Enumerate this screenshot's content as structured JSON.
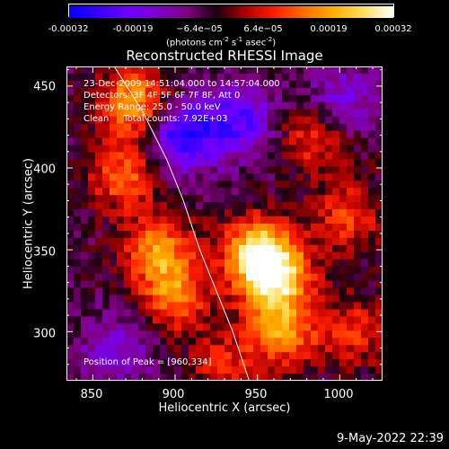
{
  "colorbar": {
    "ticks": [
      "-0.00032",
      "-0.00019",
      "−6.4e−05",
      "6.4e−05",
      "0.00019",
      "0.00032"
    ],
    "units_main": "(photons cm",
    "units_exp1": "-2",
    "units_mid1": " s",
    "units_exp2": "-1",
    "units_mid2": " asec",
    "units_exp3": "-2",
    "units_end": ")",
    "colormap": [
      "#0000ff",
      "#3a00ff",
      "#6e00ff",
      "#7f00cc",
      "#800080",
      "#1a0010",
      "#b00000",
      "#ff2000",
      "#ff7000",
      "#ffb000",
      "#ffe060",
      "#ffffff"
    ]
  },
  "chart_data": {
    "type": "heatmap",
    "title": "Reconstructed RHESSI Image",
    "xlabel": "Heliocentric X (arcsec)",
    "ylabel": "Heliocentric Y (arcsec)",
    "xlim": [
      834,
      1026
    ],
    "ylim": [
      270,
      462
    ],
    "xticks": [
      850,
      900,
      950,
      1000
    ],
    "yticks": [
      300,
      350,
      400,
      450
    ],
    "value_range": [
      -0.00032,
      0.00032
    ],
    "limb_curve": [
      [
        863,
        462
      ],
      [
        880,
        435
      ],
      [
        895,
        405
      ],
      [
        905,
        380
      ],
      [
        915,
        350
      ],
      [
        925,
        325
      ],
      [
        935,
        300
      ],
      [
        945,
        270
      ]
    ],
    "peak": [
      960,
      334
    ],
    "bright_sources": [
      {
        "x": 875,
        "y": 440,
        "value": 0.00024
      },
      {
        "x": 868,
        "y": 395,
        "value": 0.00018
      },
      {
        "x": 890,
        "y": 350,
        "value": 0.00021
      },
      {
        "x": 900,
        "y": 322,
        "value": 0.0002
      },
      {
        "x": 960,
        "y": 334,
        "value": 0.00032
      },
      {
        "x": 950,
        "y": 350,
        "value": 0.00025
      },
      {
        "x": 965,
        "y": 300,
        "value": 0.00022
      },
      {
        "x": 985,
        "y": 420,
        "value": 0.00016
      },
      {
        "x": 1005,
        "y": 370,
        "value": 0.00015
      },
      {
        "x": 930,
        "y": 280,
        "value": 0.00012
      },
      {
        "x": 1010,
        "y": 300,
        "value": 0.00013
      }
    ],
    "dark_regions": [
      {
        "x": 905,
        "y": 420,
        "value": -0.00025
      },
      {
        "x": 940,
        "y": 430,
        "value": -0.00018
      },
      {
        "x": 865,
        "y": 290,
        "value": -0.00012
      },
      {
        "x": 1000,
        "y": 440,
        "value": -0.00014
      }
    ]
  },
  "info": {
    "time_range": "23-Dec-2009 14:51:04.000 to 14:57:04.000",
    "detectors": "Detectors: 3F 4F 5F 6F 7F 8F, Att 0",
    "energy": "Energy Range: 25.0 - 50.0 keV",
    "clean": "Clean     Total counts: 7.92E+03",
    "peak": "Position of Peak = [960,334]"
  },
  "datestamp": "9-May-2022 22:39"
}
